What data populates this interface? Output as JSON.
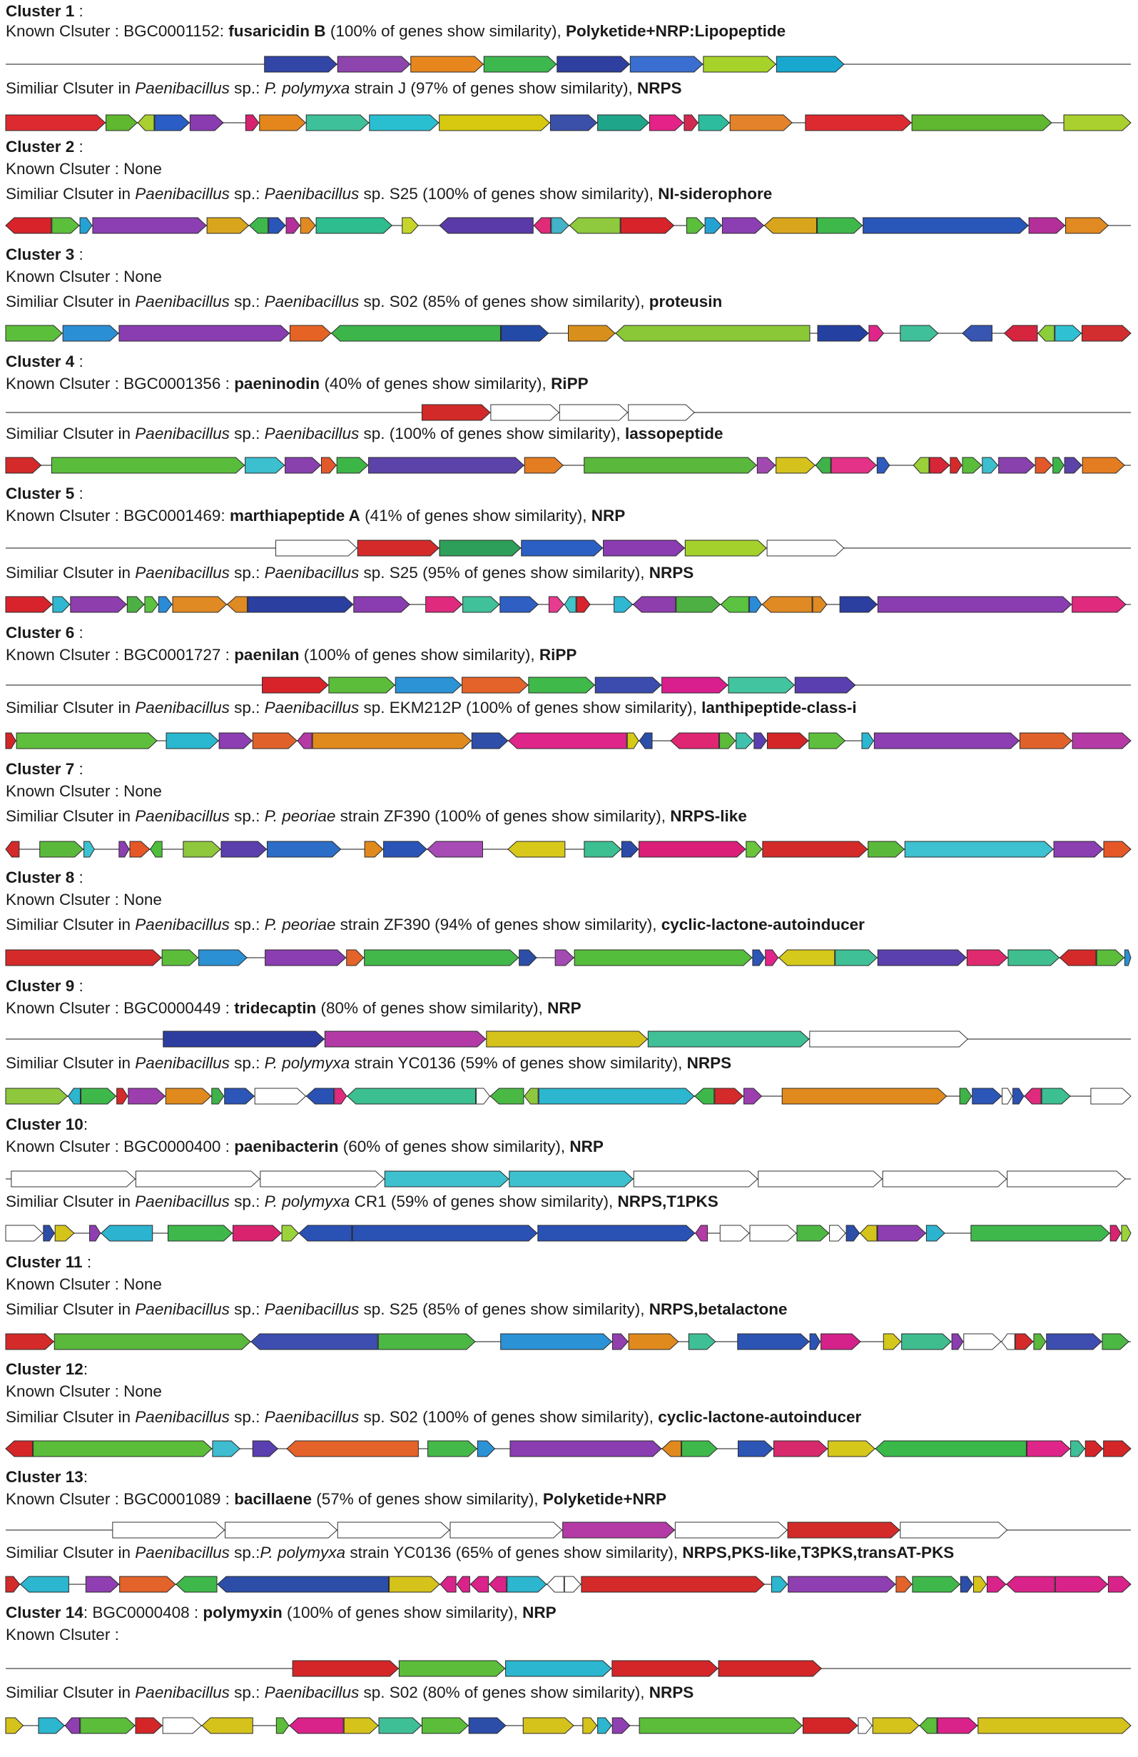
{
  "figure": {
    "clusters": [
      {
        "title": "Cluster 1",
        "sep": " :",
        "known": {
          "prefix": "Known Clsuter : ",
          "id": "BGC0001152:",
          "name": "fusaricidin B",
          "pct": "(100% of genes show similarity),",
          "type": "Polyketide+NRP:Lipopeptide",
          "type_bold": true
        },
        "known_track": {
          "x1": 0.23,
          "x2": 0.745,
          "colors": [
            "#3246a8",
            "#8e44ad",
            "#e8861e",
            "#3db84f",
            "#2e3f9f",
            "#3a6ed0",
            "#a7d22a",
            "#18a7cf"
          ]
        },
        "similar": {
          "prefix": "Similiar Clsuter in ",
          "genus": "Paenibacillus",
          "mid": " sp.: ",
          "strain_it": "P. polymyxa",
          "strain": " strain J",
          "pct": " (97% of genes show similarity), ",
          "type": "NRPS"
        },
        "similar_track": {
          "colors": [
            "#dc2a30",
            "#5fb82f",
            "#aad02f",
            "#2a5ec6",
            "#8a3bb0",
            "#d5236f",
            "#e4861c",
            "#3ec09a",
            "#29bfd1",
            "#d6c90f",
            "#3a50a9",
            "#1fa58a",
            "#e42287",
            "#d3284f",
            "#2dbd9e",
            "#e3822a"
          ]
        }
      },
      {
        "title": "Cluster 2",
        "sep": " :",
        "known": {
          "prefix": "Known Clsuter :   None"
        },
        "known_track": null,
        "similar": {
          "prefix": "Similiar Clsuter in ",
          "genus": "Paenibacillus",
          "mid": " sp.: ",
          "strain_it": "Paenibacillus",
          "strain": " sp. S25",
          "pct": " (100% of genes show similarity), ",
          "type": "NI-siderophore"
        },
        "similar_track": {
          "colors": [
            "#d8232a",
            "#5bbf3c",
            "#25a2d4",
            "#8b3fb3",
            "#d8a51c",
            "#3fb84b",
            "#2956b9",
            "#b42f9a",
            "#e08a21",
            "#2dbd8e",
            "#c7d52a",
            "#5a3aa8",
            "#df2b79",
            "#42b3c8",
            "#8fc93d"
          ]
        }
      },
      {
        "title": "Cluster 3",
        "sep": " :",
        "known": {
          "prefix": "Known Clsuter : None"
        },
        "known_track": null,
        "similar": {
          "prefix": "Similiar Clsuter in ",
          "genus": "Paenibacillus",
          "mid": " sp.: ",
          "strain_it": "Paenibacillus",
          "strain": " sp. S02  ",
          "pct": "(85% of genes show similarity), ",
          "type": "proteusin"
        },
        "similar_track": {
          "colors": [
            "#5cbf3b",
            "#2b8fd6",
            "#8a3cb1",
            "#e56324",
            "#3cb54a",
            "#244aa8",
            "#d88f1b",
            "#8bc837",
            "#2440a1",
            "#df2589",
            "#3fbf9a",
            "#3755b1",
            "#d5253f",
            "#8ccd3a",
            "#2fc1d3",
            "#d22e30"
          ]
        }
      },
      {
        "title": "Cluster 4",
        "sep": " :",
        "known": {
          "prefix": "Known Clsuter : BGC0001356 : ",
          "name": "paeninodin",
          "pct": " (40% of genes show similarity), ",
          "type": "RiPP"
        },
        "known_track": {
          "x1": 0.37,
          "x2": 0.612,
          "colors": [
            "#d22a28",
            "#ffffff",
            "#ffffff",
            "#ffffff"
          ]
        },
        "similar": {
          "prefix": "Similiar Clsuter in ",
          "genus": "Paenibacillus",
          "mid": " sp.: ",
          "strain_it": "Paenibacillus",
          "strain": " sp.",
          "pct": " (100% of genes show similarity), ",
          "type": "lassopeptide"
        },
        "similar_track": {
          "colors": [
            "#d52a2a",
            "#59bd3b",
            "#3cbfcf",
            "#8941ae",
            "#e1582a",
            "#3db648",
            "#5b43a9",
            "#e47c22",
            "#5ab83c",
            "#a049b1",
            "#d6c21c",
            "#3fb34a",
            "#e33287",
            "#2f5bbf",
            "#9bd038",
            "#d72638"
          ]
        }
      },
      {
        "title": "Cluster 5",
        "sep": " :",
        "known": {
          "prefix": "Known Clsuter : BGC0001469: ",
          "name": "marthiapeptide A",
          "pct": " (41% of genes show similarity), ",
          "type": "NRP",
          "type_bold": true
        },
        "known_track": {
          "x1": 0.24,
          "x2": 0.745,
          "colors": [
            "#ffffff",
            "#d42a2a",
            "#2e9f5a",
            "#2b5fc4",
            "#8a3cb0",
            "#a5d12c",
            "#ffffff"
          ]
        },
        "similar": {
          "prefix": "Similiar Clsuter in ",
          "genus": "Paenibacillus",
          "mid": " sp.: ",
          "strain_it": "Paenibacillus",
          "strain": " sp. S25",
          "pct": " (95% of genes show similarity), ",
          "type": "NRPS"
        },
        "similar_track": {
          "colors": [
            "#d9232c",
            "#2fb8d1",
            "#8f3eae",
            "#4db043",
            "#5bc33f",
            "#2a8bd7",
            "#e08a23",
            "#e08a23",
            "#2b3fa0",
            "#8a3db0",
            "#df2a7d",
            "#40c19a",
            "#2f5fc2",
            "#e63b8f",
            "#3fc3c9"
          ]
        }
      },
      {
        "title": "Cluster 6",
        "sep": " :",
        "known": {
          "prefix": "Known Clsuter : BGC0001727 : ",
          "name": "paenilan",
          "pct": " (100% of genes show similarity), ",
          "type": "RiPP"
        },
        "known_track": {
          "x1": 0.228,
          "x2": 0.755,
          "colors": [
            "#d8232a",
            "#5bbd3a",
            "#2b93d6",
            "#e4632a",
            "#3fb94a",
            "#3b4cae",
            "#d81f8d",
            "#41c49f",
            "#5a3fb0"
          ]
        },
        "similar": {
          "prefix": "Similiar Clsuter in ",
          "genus": "Paenibacillus",
          "mid": " sp.: ",
          "strain_it": "Paenibacillus",
          "strain": " sp. EKM212P",
          "pct": " (100% of genes show similarity), ",
          "type": "lanthipeptide-class-i"
        },
        "similar_track": {
          "colors": [
            "#d42628",
            "#5ebf3c",
            "#2ab7d0",
            "#8c3eb2",
            "#e0622a",
            "#b53aa6",
            "#e08a1d",
            "#2e4ea9",
            "#df2589",
            "#d5ca14",
            "#2c4ea9",
            "#de2672",
            "#5cbc3a",
            "#3ec1ad",
            "#5a3fb0"
          ]
        }
      },
      {
        "title": "Cluster 7",
        "sep": " :",
        "known": {
          "prefix": "Known Clsuter : None"
        },
        "known_track": null,
        "similar": {
          "prefix": "Similiar Clsuter in ",
          "genus": "Paenibacillus",
          "mid": " sp.: ",
          "strain_it": "P. peoriae",
          "strain": " strain ZF390",
          "pct": " (100% of genes show similarity), ",
          "type": "NRPS-like"
        },
        "similar_track": {
          "colors": [
            "#d42a2a",
            "#5ab93b",
            "#3ec1d1",
            "#8c3fb1",
            "#e65728",
            "#4fbd3c",
            "#8fc73d",
            "#5a3fad",
            "#2c6dc7",
            "#e08a1d",
            "#2a55b7",
            "#a74cb5",
            "#d7c81a",
            "#3cbf91",
            "#2c4ba9",
            "#db1f78",
            "#6ac53b"
          ]
        }
      },
      {
        "title": "Cluster 8",
        "sep": " :",
        "known": {
          "prefix": "Known Clsuter : None"
        },
        "known_track": null,
        "similar": {
          "prefix": "Similiar Clsuter in ",
          "genus": "Paenibacillus",
          "mid": " sp.: ",
          "strain_it": "P. peoriae",
          "strain": " strain ZF390",
          "pct": " (94% of genes show similarity), ",
          "type": "cyclic-lactone-autoinducer"
        },
        "similar_track": {
          "colors": [
            "#d42b2a",
            "#5bbd3a",
            "#2b91d4",
            "#8a3eb1",
            "#e4632a",
            "#42b84a",
            "#2c4ea9",
            "#a44ab3",
            "#55bd3c",
            "#2c55b6",
            "#df2589",
            "#d5c91b",
            "#3fc096",
            "#5a40ae",
            "#df2a6f",
            "#3fbf8f"
          ]
        }
      },
      {
        "title": "Cluster 9",
        "sep": " :",
        "known": {
          "prefix": "Known Clsuter : BGC0000449 : ",
          "name": "tridecaptin",
          "pct": " (80% of genes show similarity), ",
          "type": "NRP",
          "type_bold": true
        },
        "known_track": {
          "x1": 0.14,
          "x2": 0.855,
          "colors": [
            "#2d3d9f",
            "#b33aa6",
            "#d5c21b",
            "#41c097",
            "#ffffff"
          ]
        },
        "similar": {
          "prefix": "Similiar Clsuter in ",
          "genus": "Paenibacillus",
          "mid": " sp.: ",
          "strain_it": "P. polymyxa",
          "strain": " strain YC0136",
          "pct": " (59% of genes show similarity), ",
          "type": "NRPS"
        },
        "similar_track": {
          "colors": [
            "#8fc83d",
            "#2cb6cf",
            "#3fb84b",
            "#d52a2a",
            "#9d3eaf",
            "#e08a1d",
            "#3fb34a",
            "#2c56b8",
            "#ffffff",
            "#2a52b5",
            "#df2a7d",
            "#3cbf91",
            "#ffffff",
            "#49b944"
          ]
        }
      },
      {
        "title": "Cluster 10",
        "sep": ":",
        "known": {
          "prefix": "Known Clsuter : BGC0000400 : ",
          "name": "paenibacterin",
          "pct": " (60% of genes show similarity), ",
          "type": "NRP",
          "type_bold": true
        },
        "known_track": {
          "x1": 0.005,
          "x2": 0.995,
          "colors": [
            "#ffffff",
            "#ffffff",
            "#ffffff",
            "#3dc1cf",
            "#3dc1cf",
            "#ffffff",
            "#ffffff",
            "#ffffff",
            "#ffffff"
          ]
        },
        "similar": {
          "prefix": "Similiar Clsuter in ",
          "genus": "Paenibacillus",
          "mid": " sp.: ",
          "strain_it": "P. polymyxa",
          "strain": " CR1",
          "pct": " (59% of genes show similarity), ",
          "type": "NRPS,T1PKS"
        },
        "similar_track": {
          "colors": [
            "#ffffff",
            "#2c4ea9",
            "#d4c41a",
            "#8e3eb1",
            "#2cb3cf",
            "#3fb84b",
            "#d9236f",
            "#9bd33a",
            "#2a52b5",
            "#2a52b5",
            "#2a52b5",
            "#b43aa6",
            "#ffffff",
            "#ffffff",
            "#4db944"
          ]
        }
      },
      {
        "title": "Cluster 11",
        "sep": " :",
        "known": {
          "prefix": "Known Clsuter : None"
        },
        "known_track": null,
        "similar": {
          "prefix": "Similiar Clsuter in ",
          "genus": "Paenibacillus",
          "mid": " sp.: ",
          "strain_it": "Paenibacillus",
          "strain": " sp. S25",
          "pct": " (85% of genes show similarity), ",
          "type": "NRPS,betalactone"
        },
        "similar_track": {
          "colors": [
            "#d52a2a",
            "#5ab83a",
            "#3d4eb0",
            "#4cb844",
            "#2b92d6",
            "#9340ae",
            "#e08a1d",
            "#3fbf96",
            "#2c54b4",
            "#2c54b4",
            "#d5228a",
            "#d3c81b",
            "#3fbd8f",
            "#8b3db1",
            "#ffffff",
            "#ffffff"
          ]
        }
      },
      {
        "title": "Cluster 12",
        "sep": ":",
        "known": {
          "prefix": "Known Clsuter : None"
        },
        "known_track": null,
        "similar": {
          "prefix": "Similiar Clsuter in ",
          "genus": "Paenibacillus",
          "mid": " sp.: ",
          "strain_it": "Paenibacillus",
          "strain": " sp. S02  ",
          "pct": "(100% of genes show similarity), ",
          "type": "cyclic-lactone-autoinducer"
        },
        "similar_track": {
          "colors": [
            "#d42628",
            "#5bbd3a",
            "#3fbccf",
            "#5a3fb0",
            "#e4632a",
            "#45b84a",
            "#2b93d6",
            "#8a3db1",
            "#e08a1d",
            "#3fb84b",
            "#2c55b6",
            "#d62a6c",
            "#d5c81b",
            "#3ab84a",
            "#df2589",
            "#3fbf96",
            "#d42628"
          ]
        }
      },
      {
        "title": "Cluster 13",
        "sep": ":",
        "known": {
          "prefix": "Known Clsuter : BGC0001089 : ",
          "name": "bacillaene",
          "pct": " (57% of genes show similarity), ",
          "type": "Polyketide+NRP",
          "type_bold": true
        },
        "known_track": {
          "x1": 0.095,
          "x2": 0.89,
          "colors": [
            "#ffffff",
            "#ffffff",
            "#ffffff",
            "#ffffff",
            "#b43aa6",
            "#ffffff",
            "#d32a2a",
            "#ffffff"
          ]
        },
        "similar": {
          "prefix": "Similiar Clsuter in ",
          "genus": "Paenibacillus",
          "mid": " sp.:",
          "strain_it": "P. polymyxa",
          "strain": " strain YC0136",
          "pct": " (65% of genes show similarity), ",
          "type": "NRPS,PKS-like,T3PKS,transAT-PKS"
        },
        "similar_track": {
          "colors": [
            "#d52a2a",
            "#2cb6cf",
            "#8f3fb1",
            "#e4632a",
            "#3fb84b",
            "#2c4ea9",
            "#d5c21b",
            "#d9238a",
            "#d9238a",
            "#d9238a",
            "#d9238a",
            "#2cb6cf",
            "#ffffff",
            "#ffffff"
          ]
        }
      },
      {
        "title": "Cluster 14",
        "sep": ": BGC0000408 : ",
        "title_name": "polymyxin",
        "title_pct": " (100% of genes show similarity), ",
        "title_type": "NRP",
        "known": {
          "prefix": "Known Clsuter :"
        },
        "known_track": {
          "x1": 0.255,
          "x2": 0.725,
          "colors": [
            "#d42628",
            "#5bbd3a",
            "#2cb6cf",
            "#d42628",
            "#d42628"
          ]
        },
        "similar": {
          "prefix": "Similiar Clsuter in ",
          "genus": "Paenibacillus",
          "mid": " sp.:  ",
          "strain_it": "Paenibacillus",
          "strain": " sp. S02",
          "pct": " (80% of genes show similarity), ",
          "type": "NRPS"
        },
        "similar_track": {
          "colors": [
            "#d5c21b",
            "#2cb6cf",
            "#8f3fb1",
            "#5bbd3a",
            "#d42628",
            "#ffffff",
            "#d5c21b",
            "#5bbd3a",
            "#d9238a",
            "#d5c21b",
            "#3fbf96",
            "#5bbd3a",
            "#2c4ea9",
            "#d5c21b"
          ]
        }
      }
    ]
  }
}
